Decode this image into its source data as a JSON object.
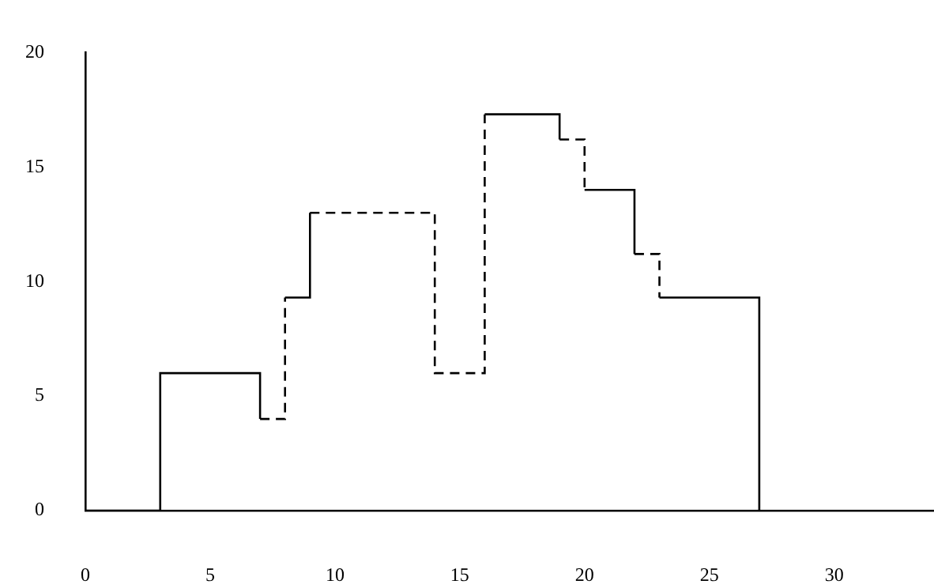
{
  "chart_data": {
    "type": "step",
    "xlim": [
      0,
      34
    ],
    "xticks": [
      0,
      5,
      10,
      15,
      20,
      25,
      30
    ],
    "ylim": [
      0,
      20
    ],
    "yticks": [
      0,
      5,
      10,
      15,
      20
    ],
    "grid": false,
    "legend": false,
    "marker": "none",
    "series": [
      {
        "color": "#000000",
        "line_style": "solid",
        "x": [
          0,
          3,
          7
        ],
        "values": [
          0,
          6,
          4
        ]
      },
      {
        "color": "#000000",
        "line_style": "dashed",
        "x": [
          7,
          8
        ],
        "values": [
          4,
          9.3
        ]
      },
      {
        "color": "#000000",
        "line_style": "solid",
        "x": [
          8,
          9
        ],
        "values": [
          9.3,
          13
        ]
      },
      {
        "color": "#000000",
        "line_style": "dashed",
        "x": [
          9,
          14,
          16
        ],
        "values": [
          13,
          6,
          17.3
        ]
      },
      {
        "color": "#000000",
        "line_style": "solid",
        "x": [
          16,
          19
        ],
        "values": [
          17.3,
          16.2
        ]
      },
      {
        "color": "#000000",
        "line_style": "dashed",
        "x": [
          19,
          20
        ],
        "values": [
          16.2,
          14
        ]
      },
      {
        "color": "#000000",
        "line_style": "solid",
        "x": [
          20,
          22
        ],
        "values": [
          14,
          11.2
        ]
      },
      {
        "color": "#000000",
        "line_style": "dashed",
        "x": [
          22,
          23
        ],
        "values": [
          11.2,
          9.3
        ]
      },
      {
        "color": "#000000",
        "line_style": "solid",
        "x": [
          23,
          27
        ],
        "values": [
          9.3,
          0
        ]
      }
    ]
  }
}
